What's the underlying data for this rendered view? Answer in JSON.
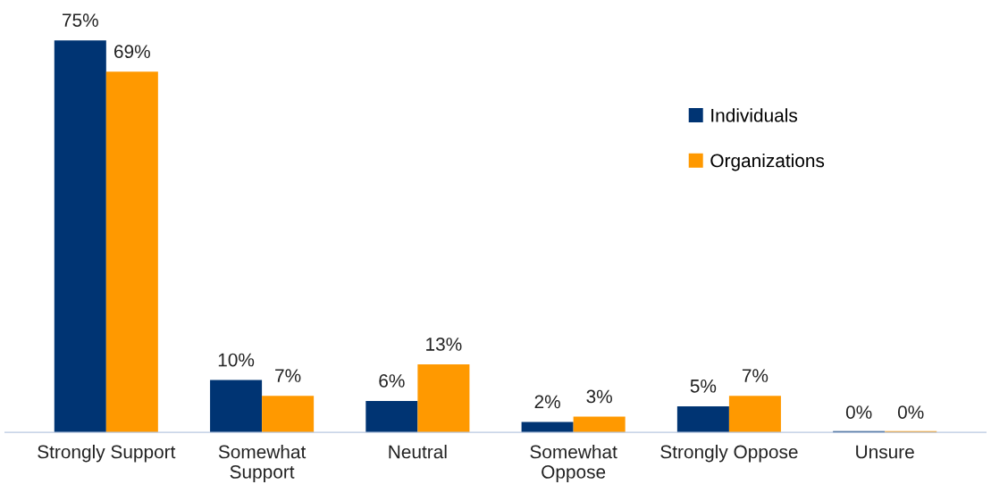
{
  "chart_data": {
    "type": "bar",
    "categories": [
      "Strongly Support",
      "Somewhat\nSupport",
      "Neutral",
      "Somewhat\nOppose",
      "Strongly Oppose",
      "Unsure"
    ],
    "series": [
      {
        "name": "Individuals",
        "color": "#003473",
        "values": [
          75,
          10,
          6,
          2,
          5,
          0
        ],
        "value_labels": [
          "75%",
          "10%",
          "6%",
          "2%",
          "5%",
          "0%"
        ]
      },
      {
        "name": "Organizations",
        "color": "#ff9900",
        "values": [
          69,
          7,
          13,
          3,
          7,
          0
        ],
        "value_labels": [
          "69%",
          "7%",
          "13%",
          "3%",
          "7%",
          "0%"
        ]
      }
    ],
    "legend": "top right",
    "grid": false
  }
}
